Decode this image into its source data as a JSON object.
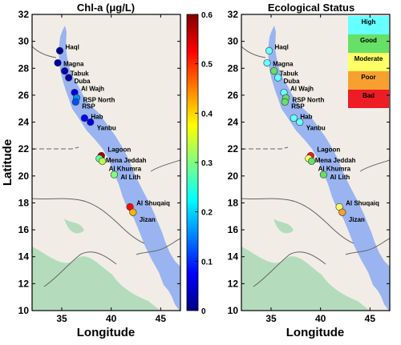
{
  "left_panel": {
    "title": "Chl-a (μg/L)"
  },
  "right_panel": {
    "title": "Ecological Status"
  },
  "axes": {
    "xlabel": "Longitude",
    "ylabel": "Latitude",
    "x_ticks": [
      "35",
      "40",
      "45"
    ],
    "y_ticks": [
      "10",
      "12",
      "14",
      "16",
      "18",
      "20",
      "22",
      "24",
      "26",
      "28",
      "30",
      "32"
    ]
  },
  "colorbar": {
    "ticks": [
      "0",
      "0.1",
      "0.2",
      "0.3",
      "0.4",
      "0.5",
      "0.6"
    ],
    "colors": [
      "#000083",
      "#0000ff",
      "#00ffff",
      "#ffff00",
      "#ff0000",
      "#800000"
    ]
  },
  "legend": {
    "items": [
      {
        "label": "High",
        "color": "#66ffff"
      },
      {
        "label": "Good",
        "color": "#66e066"
      },
      {
        "label": "Moderate",
        "color": "#ffff66"
      },
      {
        "label": "Poor",
        "color": "#f7a030"
      },
      {
        "label": "Bad",
        "color": "#ee1c24"
      }
    ]
  },
  "colors": {
    "sea": "#99b4f0",
    "land": "#f1ede6",
    "forest": "#b4dcbc",
    "border": "#666666"
  },
  "site_labels": [
    "Haql",
    "Magna",
    "Tabuk",
    "Duba",
    "Al Wajh",
    "RSP North",
    "RSP",
    "Hab",
    "Yanbu",
    "Lagoon",
    "Mena Jeddah",
    "Al Khumra",
    "Al Lith",
    "Al Shuqaiq",
    "Jizan"
  ],
  "chart_data": [
    {
      "type": "scatter",
      "title": "Chl-a (μg/L)",
      "xlabel": "Longitude",
      "ylabel": "Latitude",
      "xlim": [
        32,
        47
      ],
      "ylim": [
        10,
        32
      ],
      "color_scale": "jet",
      "clim": [
        0,
        0.6
      ],
      "points": [
        {
          "lon": 34.8,
          "lat": 29.3,
          "chla": 0.01
        },
        {
          "lon": 34.6,
          "lat": 28.4,
          "chla": 0.02
        },
        {
          "lon": 35.3,
          "lat": 27.8,
          "chla": 0.03
        },
        {
          "lon": 35.7,
          "lat": 27.3,
          "chla": 0.02
        },
        {
          "lon": 36.3,
          "lat": 26.2,
          "chla": 0.06
        },
        {
          "lon": 36.5,
          "lat": 25.8,
          "chla": 0.16
        },
        {
          "lon": 36.4,
          "lat": 25.5,
          "chla": 0.12
        },
        {
          "lon": 37.3,
          "lat": 24.3,
          "chla": 0.07
        },
        {
          "lon": 37.9,
          "lat": 24.0,
          "chla": 0.06
        },
        {
          "lon": 39.0,
          "lat": 21.5,
          "chla": 0.58
        },
        {
          "lon": 38.8,
          "lat": 21.3,
          "chla": 0.28
        },
        {
          "lon": 39.1,
          "lat": 21.1,
          "chla": 0.33
        },
        {
          "lon": 40.3,
          "lat": 20.1,
          "chla": 0.3
        },
        {
          "lon": 41.9,
          "lat": 17.7,
          "chla": 0.52
        },
        {
          "lon": 42.2,
          "lat": 17.3,
          "chla": 0.42
        }
      ]
    },
    {
      "type": "scatter",
      "title": "Ecological Status",
      "xlabel": "Longitude",
      "ylabel": "Latitude",
      "xlim": [
        32,
        47
      ],
      "ylim": [
        10,
        32
      ],
      "points": [
        {
          "lon": 34.8,
          "lat": 29.3,
          "status": "High"
        },
        {
          "lon": 34.6,
          "lat": 28.4,
          "status": "High"
        },
        {
          "lon": 35.3,
          "lat": 27.8,
          "status": "Good"
        },
        {
          "lon": 35.7,
          "lat": 27.3,
          "status": "High"
        },
        {
          "lon": 36.3,
          "lat": 26.2,
          "status": "High"
        },
        {
          "lon": 36.5,
          "lat": 25.8,
          "status": "Good"
        },
        {
          "lon": 36.4,
          "lat": 25.5,
          "status": "Good"
        },
        {
          "lon": 37.3,
          "lat": 24.3,
          "status": "High"
        },
        {
          "lon": 37.9,
          "lat": 24.0,
          "status": "High"
        },
        {
          "lon": 39.0,
          "lat": 21.5,
          "status": "Bad"
        },
        {
          "lon": 38.8,
          "lat": 21.3,
          "status": "Moderate"
        },
        {
          "lon": 39.1,
          "lat": 21.1,
          "status": "Good"
        },
        {
          "lon": 40.3,
          "lat": 20.1,
          "status": "Good"
        },
        {
          "lon": 41.9,
          "lat": 17.7,
          "status": "Moderate"
        },
        {
          "lon": 42.2,
          "lat": 17.3,
          "status": "Poor"
        }
      ]
    }
  ]
}
